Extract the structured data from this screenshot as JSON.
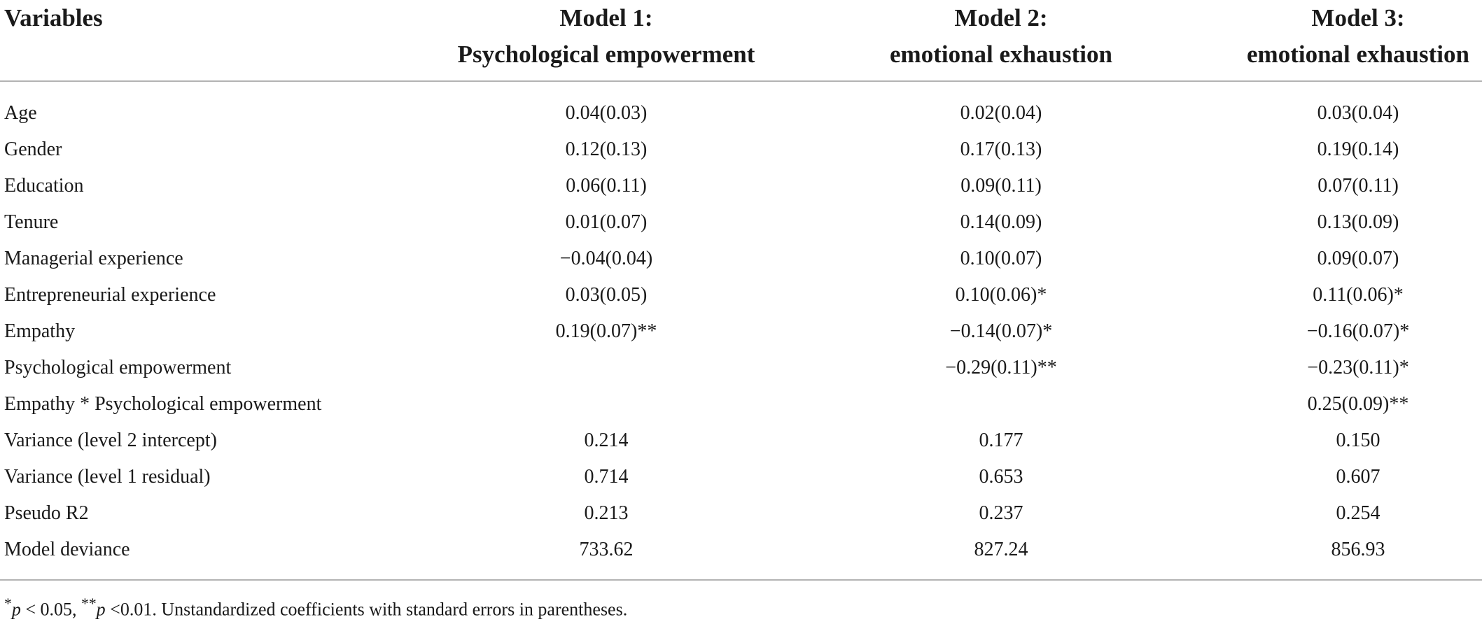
{
  "headers": {
    "variables": "Variables",
    "model1": {
      "line1": "Model 1:",
      "line2": "Psychological empowerment"
    },
    "model2": {
      "line1": "Model 2:",
      "line2": "emotional exhaustion"
    },
    "model3": {
      "line1": "Model 3:",
      "line2": "emotional exhaustion"
    }
  },
  "rows": [
    {
      "label": "Age",
      "m1": "0.04(0.03)",
      "m2": "0.02(0.04)",
      "m3": "0.03(0.04)"
    },
    {
      "label": "Gender",
      "m1": "0.12(0.13)",
      "m2": "0.17(0.13)",
      "m3": "0.19(0.14)"
    },
    {
      "label": "Education",
      "m1": "0.06(0.11)",
      "m2": "0.09(0.11)",
      "m3": "0.07(0.11)"
    },
    {
      "label": "Tenure",
      "m1": "0.01(0.07)",
      "m2": "0.14(0.09)",
      "m3": "0.13(0.09)"
    },
    {
      "label": "Managerial experience",
      "m1": "−0.04(0.04)",
      "m2": "0.10(0.07)",
      "m3": "0.09(0.07)"
    },
    {
      "label": "Entrepreneurial experience",
      "m1": "0.03(0.05)",
      "m2": "0.10(0.06)*",
      "m3": "0.11(0.06)*"
    },
    {
      "label": "Empathy",
      "m1": "0.19(0.07)**",
      "m2": "−0.14(0.07)*",
      "m3": "−0.16(0.07)*"
    },
    {
      "label": "Psychological empowerment",
      "m1": "",
      "m2": "−0.29(0.11)**",
      "m3": "−0.23(0.11)*"
    },
    {
      "label": "Empathy * Psychological empowerment",
      "m1": "",
      "m2": "",
      "m3": "0.25(0.09)**"
    },
    {
      "label": "Variance (level 2 intercept)",
      "m1": "0.214",
      "m2": "0.177",
      "m3": "0.150"
    },
    {
      "label": "Variance (level 1 residual)",
      "m1": "0.714",
      "m2": "0.653",
      "m3": "0.607"
    },
    {
      "label": "Pseudo R2",
      "m1": "0.213",
      "m2": "0.237",
      "m3": "0.254"
    },
    {
      "label": "Model deviance",
      "m1": "733.62",
      "m2": "827.24",
      "m3": "856.93"
    }
  ],
  "footnote": {
    "star1": "*",
    "p1": "p",
    "text1": " < 0.05, ",
    "star2": "**",
    "p2": "p",
    "text2": "  <0.01. Unstandardized coefficients with standard errors in parentheses."
  }
}
